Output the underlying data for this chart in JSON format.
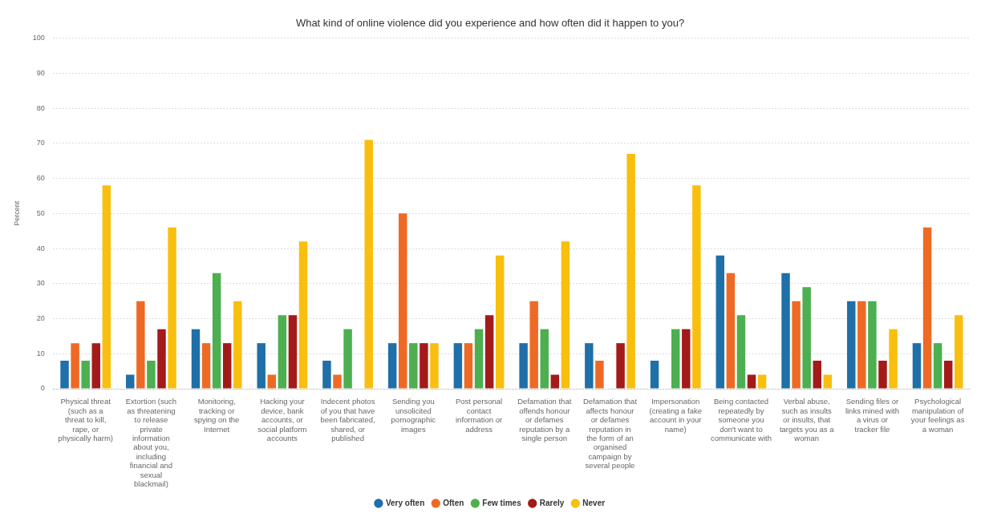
{
  "chart_data": {
    "type": "bar",
    "title": "What kind of online violence did you experience and how often did it happen to you?",
    "ylabel": "Percent",
    "categories": [
      "Physical threat (such as a threat to kill, rape, or physically harm)",
      "Extortion (such as threatening to release private information about you, including financial and sexual blackmail)",
      "Monitoring, tracking or spying on the Internet",
      "Hacking your device, bank accounts, or social platform accounts",
      "Indecent photos of you that have been fabricated, shared, or published",
      "Sending you unsolicited pornographic images",
      "Post personal contact information or address",
      "Defamation that offends honour or defames reputation by a single person",
      "Defamation that affects honour or defames reputation in the form of an organised campaign by several people",
      "Impersonation (creating a fake account in your name)",
      "Being contacted repeatedly by someone you don't want to communicate with",
      "Verbal abuse, such as insults or insults, that targets you as a woman",
      "Sending files or links mined with a virus or tracker file",
      "Psychological manipulation of your feelings as a woman"
    ],
    "series": [
      {
        "name": "Very often",
        "color": "#1f6fa8",
        "values": [
          8,
          4,
          17,
          13,
          8,
          13,
          13,
          13,
          13,
          8,
          38,
          33,
          25,
          13
        ]
      },
      {
        "name": "Often",
        "color": "#ee6a24",
        "values": [
          13,
          25,
          13,
          4,
          4,
          50,
          13,
          25,
          8,
          0,
          33,
          25,
          25,
          46
        ]
      },
      {
        "name": "Few times",
        "color": "#4caf50",
        "values": [
          8,
          8,
          33,
          21,
          17,
          13,
          17,
          17,
          0,
          17,
          21,
          29,
          25,
          13
        ]
      },
      {
        "name": "Rarely",
        "color": "#a31a1a",
        "values": [
          13,
          17,
          13,
          21,
          0,
          13,
          21,
          4,
          13,
          17,
          4,
          8,
          8,
          8
        ]
      },
      {
        "name": "Never",
        "color": "#f8bf0f",
        "values": [
          58,
          46,
          25,
          42,
          71,
          13,
          38,
          42,
          67,
          58,
          4,
          4,
          17,
          21
        ]
      }
    ],
    "ylim": [
      0,
      100
    ],
    "yticks": [
      0,
      10,
      20,
      30,
      40,
      50,
      60,
      70,
      80,
      90,
      100
    ],
    "grid": "y",
    "legend": "bottom"
  }
}
